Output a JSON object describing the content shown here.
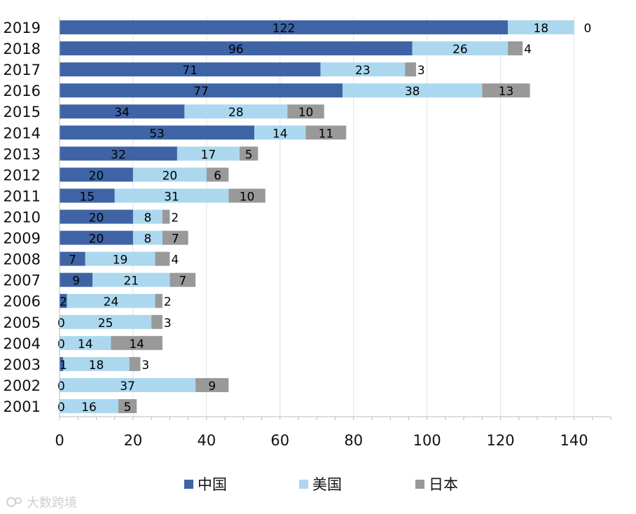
{
  "chart_data": {
    "type": "bar",
    "orientation": "horizontal",
    "stacked": true,
    "categories": [
      "2019",
      "2018",
      "2017",
      "2016",
      "2015",
      "2014",
      "2013",
      "2012",
      "2011",
      "2010",
      "2009",
      "2008",
      "2007",
      "2006",
      "2005",
      "2004",
      "2003",
      "2002",
      "2001"
    ],
    "series": [
      {
        "name": "中国",
        "color": "#3F64A6",
        "values": [
          122,
          96,
          71,
          77,
          34,
          53,
          32,
          20,
          15,
          20,
          20,
          7,
          9,
          2,
          0,
          0,
          1,
          0,
          0
        ]
      },
      {
        "name": "美国",
        "color": "#ABD8EE",
        "values": [
          18,
          26,
          23,
          38,
          28,
          14,
          17,
          20,
          31,
          8,
          8,
          19,
          21,
          24,
          25,
          14,
          18,
          37,
          16
        ]
      },
      {
        "name": "日本",
        "color": "#999999",
        "values": [
          0,
          4,
          3,
          13,
          10,
          11,
          5,
          6,
          10,
          2,
          7,
          4,
          7,
          2,
          3,
          14,
          3,
          9,
          5
        ]
      }
    ],
    "x_ticks": [
      "0",
      "20",
      "40",
      "60",
      "80",
      "100",
      "120",
      "140"
    ],
    "xlim": [
      0,
      150
    ],
    "grid": "vertical",
    "legend_position": "bottom"
  },
  "watermark": {
    "text": "大数跨境"
  }
}
